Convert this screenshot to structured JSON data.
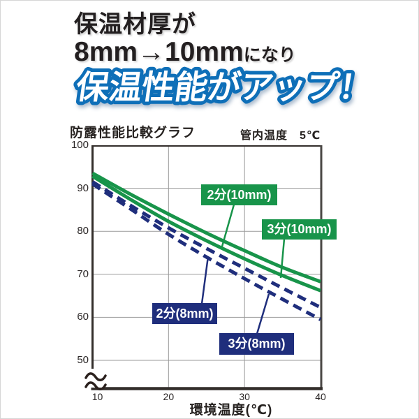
{
  "page": {
    "bg": "#ffffff",
    "border_color": "#d6d6d6"
  },
  "header": {
    "line1": "保温材厚が",
    "line2_big": "8mm→10mm",
    "line2_small": "になり",
    "line3": "保温性能がアップ！",
    "text_color": "#231f20",
    "headline_fill": "#ffffff",
    "headline_outline": "#0e6fb8"
  },
  "chart_data": {
    "type": "line",
    "title": "防露性能比較グラフ",
    "annotation": "管内温度　5℃",
    "xlabel": "環境温度(℃)",
    "ylabel": "",
    "xlim": [
      10,
      40
    ],
    "ylim": [
      50,
      100
    ],
    "xticks": [
      10,
      20,
      30,
      40
    ],
    "yticks": [
      100,
      90,
      80,
      70,
      60,
      50
    ],
    "y_axis_break": true,
    "grid": true,
    "grid_color": "#9a9a9a",
    "axis_color": "#332e2b",
    "x": [
      10,
      15,
      20,
      25,
      30,
      35,
      40
    ],
    "series": [
      {
        "label": "2分(10mm)",
        "style": "solid",
        "color": "#18944a",
        "values": [
          93.5,
          88.6,
          84.0,
          79.6,
          75.5,
          71.6,
          68.3
        ]
      },
      {
        "label": "3分(10mm)",
        "style": "solid",
        "color": "#18944a",
        "values": [
          92.8,
          87.4,
          82.3,
          77.8,
          73.6,
          69.7,
          66.2
        ]
      },
      {
        "label": "2分(8mm)",
        "style": "dashed",
        "color": "#1f2e7c",
        "values": [
          91.5,
          86.0,
          80.8,
          76.0,
          71.4,
          66.8,
          62.3
        ]
      },
      {
        "label": "3分(8mm)",
        "style": "dashed",
        "color": "#1f2e7c",
        "values": [
          91.0,
          85.2,
          79.3,
          74.0,
          69.0,
          64.2,
          59.5
        ]
      }
    ]
  }
}
